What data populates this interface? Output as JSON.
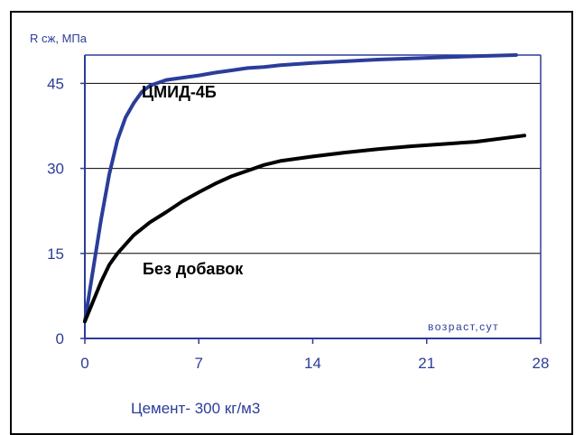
{
  "chart_data": {
    "type": "line",
    "ylabel": "R сж, МПа",
    "xlabel": "возраст,сут",
    "footer": "Цемент- 300 кг/м3",
    "xlim": [
      0,
      28
    ],
    "ylim": [
      0,
      50
    ],
    "xticks": [
      "0",
      "7",
      "14",
      "21",
      "28"
    ],
    "xtick_values": [
      0,
      7,
      14,
      21,
      28
    ],
    "yticks": [
      "0",
      "15",
      "30",
      "45"
    ],
    "ytick_values": [
      0,
      15,
      30,
      45
    ],
    "grid": true,
    "series": [
      {
        "name": "ЦМИД-4Б",
        "color": "#2b3d9a",
        "x": [
          0,
          0.5,
          1,
          1.5,
          2,
          2.5,
          3,
          3.5,
          4,
          5,
          6,
          7,
          8,
          9,
          10,
          11,
          12,
          14,
          16,
          18,
          20,
          22,
          24,
          26.5
        ],
        "y": [
          3,
          12,
          21,
          29,
          35,
          39,
          41.5,
          43.5,
          44.6,
          45.6,
          46,
          46.4,
          46.9,
          47.3,
          47.7,
          47.9,
          48.2,
          48.6,
          48.9,
          49.2,
          49.4,
          49.6,
          49.8,
          50
        ]
      },
      {
        "name": "Без добавок",
        "color": "#000000",
        "x": [
          0,
          0.5,
          1,
          1.5,
          2,
          3,
          4,
          5,
          6,
          7,
          8,
          9,
          10,
          11,
          12,
          14,
          16,
          18,
          20,
          22,
          24,
          27
        ],
        "y": [
          3,
          6.5,
          10,
          13,
          15,
          18.2,
          20.5,
          22.3,
          24.2,
          25.8,
          27.3,
          28.6,
          29.6,
          30.6,
          31.3,
          32.1,
          32.8,
          33.4,
          33.9,
          34.3,
          34.7,
          35.8
        ]
      }
    ],
    "annotations": [
      {
        "text": "ЦМИД-4Б",
        "series": 0
      },
      {
        "text": "Без добавок",
        "series": 1
      }
    ]
  }
}
